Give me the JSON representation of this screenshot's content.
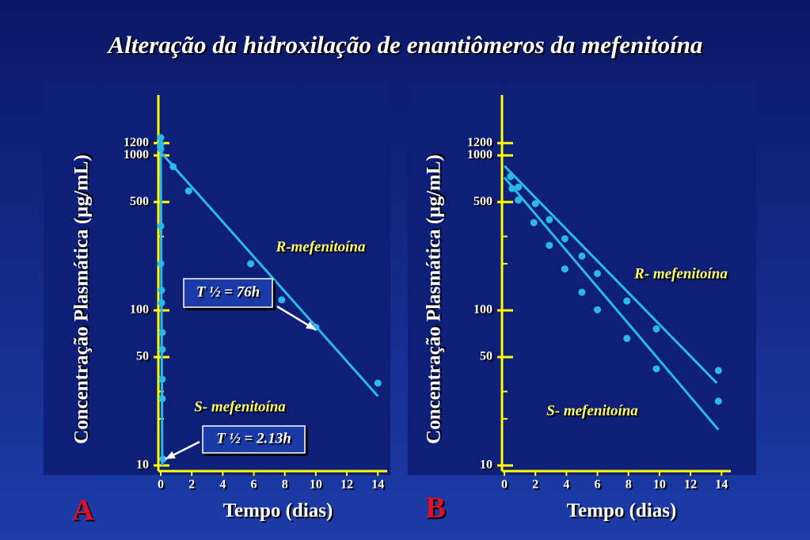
{
  "title": "Alteração da hidroxilação de enantiômeros da mefenitoína",
  "chart_data": [
    {
      "type": "scatter",
      "panel": "A",
      "x_label": "Tempo (dias)",
      "y_label": "Concentração Plasmática (µg/mL)",
      "log_y": true,
      "xlim": [
        0,
        14.6
      ],
      "ylim": [
        9.2,
        2450
      ],
      "xticks": [
        0,
        2,
        4,
        6,
        8,
        10,
        12,
        14
      ],
      "yticks": [
        10,
        50,
        100,
        500,
        1000,
        1200
      ],
      "minor_yticks": [
        20,
        30,
        200,
        300
      ],
      "series": [
        {
          "name": "R-mefenitoína",
          "color": "#2bb8ea",
          "x": [
            0.8,
            1.8,
            5.8,
            7.8,
            10,
            14
          ],
          "values": [
            845,
            590,
            200,
            117,
            78,
            34
          ],
          "fit": {
            "x": [
              0,
              14
            ],
            "values": [
              1050,
              28
            ]
          }
        },
        {
          "name": "S- mefenitoína",
          "color": "#2bb8ea",
          "x": [
            0,
            0,
            0,
            0,
            0,
            0.05,
            0.05,
            0.1,
            0.1,
            0.1,
            0.1,
            0.15
          ],
          "values": [
            1300,
            1180,
            1100,
            350,
            200,
            135,
            112,
            72,
            56,
            36,
            27,
            11
          ],
          "fit": {
            "x": [
              0,
              0.1
            ],
            "values": [
              1050,
              10
            ]
          }
        }
      ],
      "annotations": [
        {
          "text": "T ½ = 76h",
          "x": 10,
          "y": 75
        },
        {
          "text": "T ½ = 2.13h",
          "x": 0.3,
          "y": 11
        }
      ]
    },
    {
      "type": "scatter",
      "panel": "B",
      "x_label": "Tempo (dias)",
      "y_label": "Concentração Plasmática (µg/mL)",
      "log_y": true,
      "xlim": [
        0,
        14.6
      ],
      "ylim": [
        9.2,
        2450
      ],
      "xticks": [
        0,
        2,
        4,
        6,
        8,
        10,
        12,
        14
      ],
      "yticks": [
        10,
        50,
        100,
        500,
        1000,
        1200
      ],
      "minor_yticks": [
        20,
        30,
        200,
        300
      ],
      "series": [
        {
          "name": "R- mefenitoína",
          "color": "#2bb8ea",
          "x": [
            0.4,
            0.9,
            2.0,
            2.9,
            3.9,
            5.0,
            6.0,
            7.9,
            9.8,
            13.8
          ],
          "values": [
            730,
            624,
            488,
            385,
            290,
            224,
            173,
            115,
            76,
            41
          ],
          "fit": {
            "x": [
              0,
              13.7
            ],
            "values": [
              855,
              34
            ]
          }
        },
        {
          "name": "S- mefenitoína",
          "color": "#2bb8ea",
          "x": [
            0.5,
            0.9,
            1.9,
            2.9,
            3.9,
            5.0,
            6.0,
            7.9,
            9.8,
            13.8
          ],
          "values": [
            610,
            515,
            368,
            263,
            185,
            131,
            101,
            66,
            42,
            26
          ],
          "fit": {
            "x": [
              0,
              13.8
            ],
            "values": [
              720,
              17
            ]
          }
        }
      ],
      "annotations": []
    }
  ]
}
